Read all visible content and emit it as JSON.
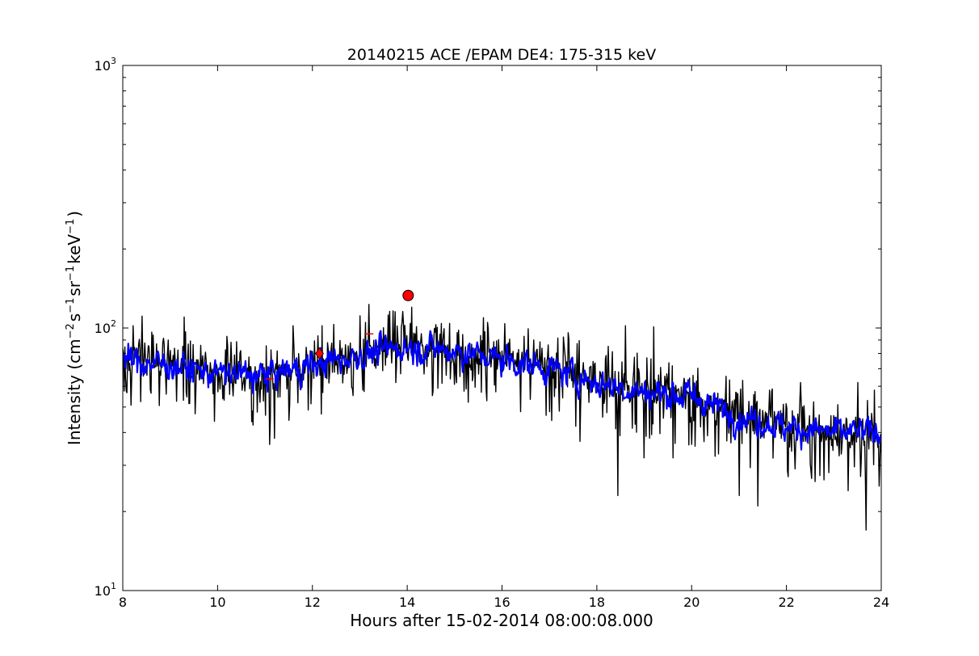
{
  "chart_data": {
    "type": "line",
    "title": "20140215 ACE /EPAM DE4: 175-315 keV",
    "xlabel": "Hours after 15-02-2014 08:00:08.000",
    "ylabel": {
      "prefix": "Intensity (cm",
      "exp1": "−2",
      "mid1": "s",
      "exp2": "−1",
      "mid2": "sr",
      "exp3": "−1",
      "mid3": "keV",
      "exp4": "−1",
      "suffix": ")"
    },
    "xlim": [
      8,
      24
    ],
    "ylim": [
      10,
      1000
    ],
    "yscale": "log",
    "xticks": [
      8,
      10,
      12,
      14,
      16,
      18,
      20,
      22,
      24
    ],
    "xtick_labels": [
      "8",
      "10",
      "12",
      "14",
      "16",
      "18",
      "20",
      "22",
      "24"
    ],
    "yticks": [
      {
        "value": 10,
        "base": "10",
        "exp": "1"
      },
      {
        "value": 100,
        "base": "10",
        "exp": "2"
      },
      {
        "value": 1000,
        "base": "10",
        "exp": "3"
      }
    ],
    "grid": false,
    "series": [
      {
        "style": "raw",
        "color": "#000000",
        "trend": [
          [
            8.0,
            78
          ],
          [
            9.0,
            74
          ],
          [
            10.0,
            68
          ],
          [
            11.0,
            66
          ],
          [
            12.0,
            72
          ],
          [
            13.0,
            80
          ],
          [
            14.0,
            86
          ],
          [
            15.0,
            83
          ],
          [
            16.0,
            77
          ],
          [
            17.0,
            70
          ],
          [
            18.0,
            63
          ],
          [
            19.0,
            57
          ],
          [
            20.0,
            55
          ],
          [
            21.0,
            47
          ],
          [
            22.0,
            42
          ],
          [
            23.0,
            39
          ],
          [
            24.0,
            38
          ]
        ],
        "spikes_down": [
          [
            11.1,
            36
          ],
          [
            11.2,
            38
          ],
          [
            16.4,
            48
          ],
          [
            17.0,
            48
          ],
          [
            17.65,
            37
          ],
          [
            18.45,
            23
          ],
          [
            19.0,
            32
          ],
          [
            19.6,
            32
          ],
          [
            21.0,
            23
          ],
          [
            21.4,
            21
          ],
          [
            22.6,
            26
          ],
          [
            23.3,
            24
          ],
          [
            23.5,
            21
          ],
          [
            23.68,
            17
          ],
          [
            23.95,
            25
          ]
        ],
        "spikes_up": [
          [
            8.4,
            111
          ],
          [
            9.3,
            110
          ],
          [
            11.6,
            102
          ],
          [
            12.2,
            102
          ],
          [
            13.2,
            123
          ],
          [
            13.6,
            112
          ],
          [
            14.1,
            120
          ],
          [
            14.6,
            103
          ],
          [
            17.4,
            96
          ],
          [
            18.6,
            102
          ],
          [
            19.2,
            101
          ],
          [
            22.3,
            62
          ],
          [
            23.5,
            62
          ],
          [
            23.85,
            58
          ]
        ]
      },
      {
        "style": "smoothed",
        "color": "#0000ff",
        "trend": [
          [
            8.0,
            76
          ],
          [
            9.0,
            72
          ],
          [
            10.0,
            67
          ],
          [
            11.0,
            66
          ],
          [
            12.0,
            72
          ],
          [
            13.0,
            79
          ],
          [
            14.0,
            85
          ],
          [
            15.0,
            82
          ],
          [
            16.0,
            76
          ],
          [
            17.0,
            70
          ],
          [
            18.0,
            62
          ],
          [
            19.0,
            57
          ],
          [
            20.0,
            55
          ],
          [
            21.0,
            46
          ],
          [
            22.0,
            42
          ],
          [
            23.0,
            40
          ],
          [
            24.0,
            40
          ]
        ]
      }
    ],
    "markers": [
      {
        "shape": "diamond",
        "x": 12.15,
        "y": 80,
        "color": "#ff0000"
      },
      {
        "shape": "circle",
        "x": 14.02,
        "y": 133,
        "color": "#ff0000"
      },
      {
        "shape": "dash",
        "x": 11.1,
        "y": 64,
        "color": "#ff0000"
      },
      {
        "shape": "dash",
        "x": 13.2,
        "y": 95,
        "color": "#ff0000"
      }
    ]
  }
}
